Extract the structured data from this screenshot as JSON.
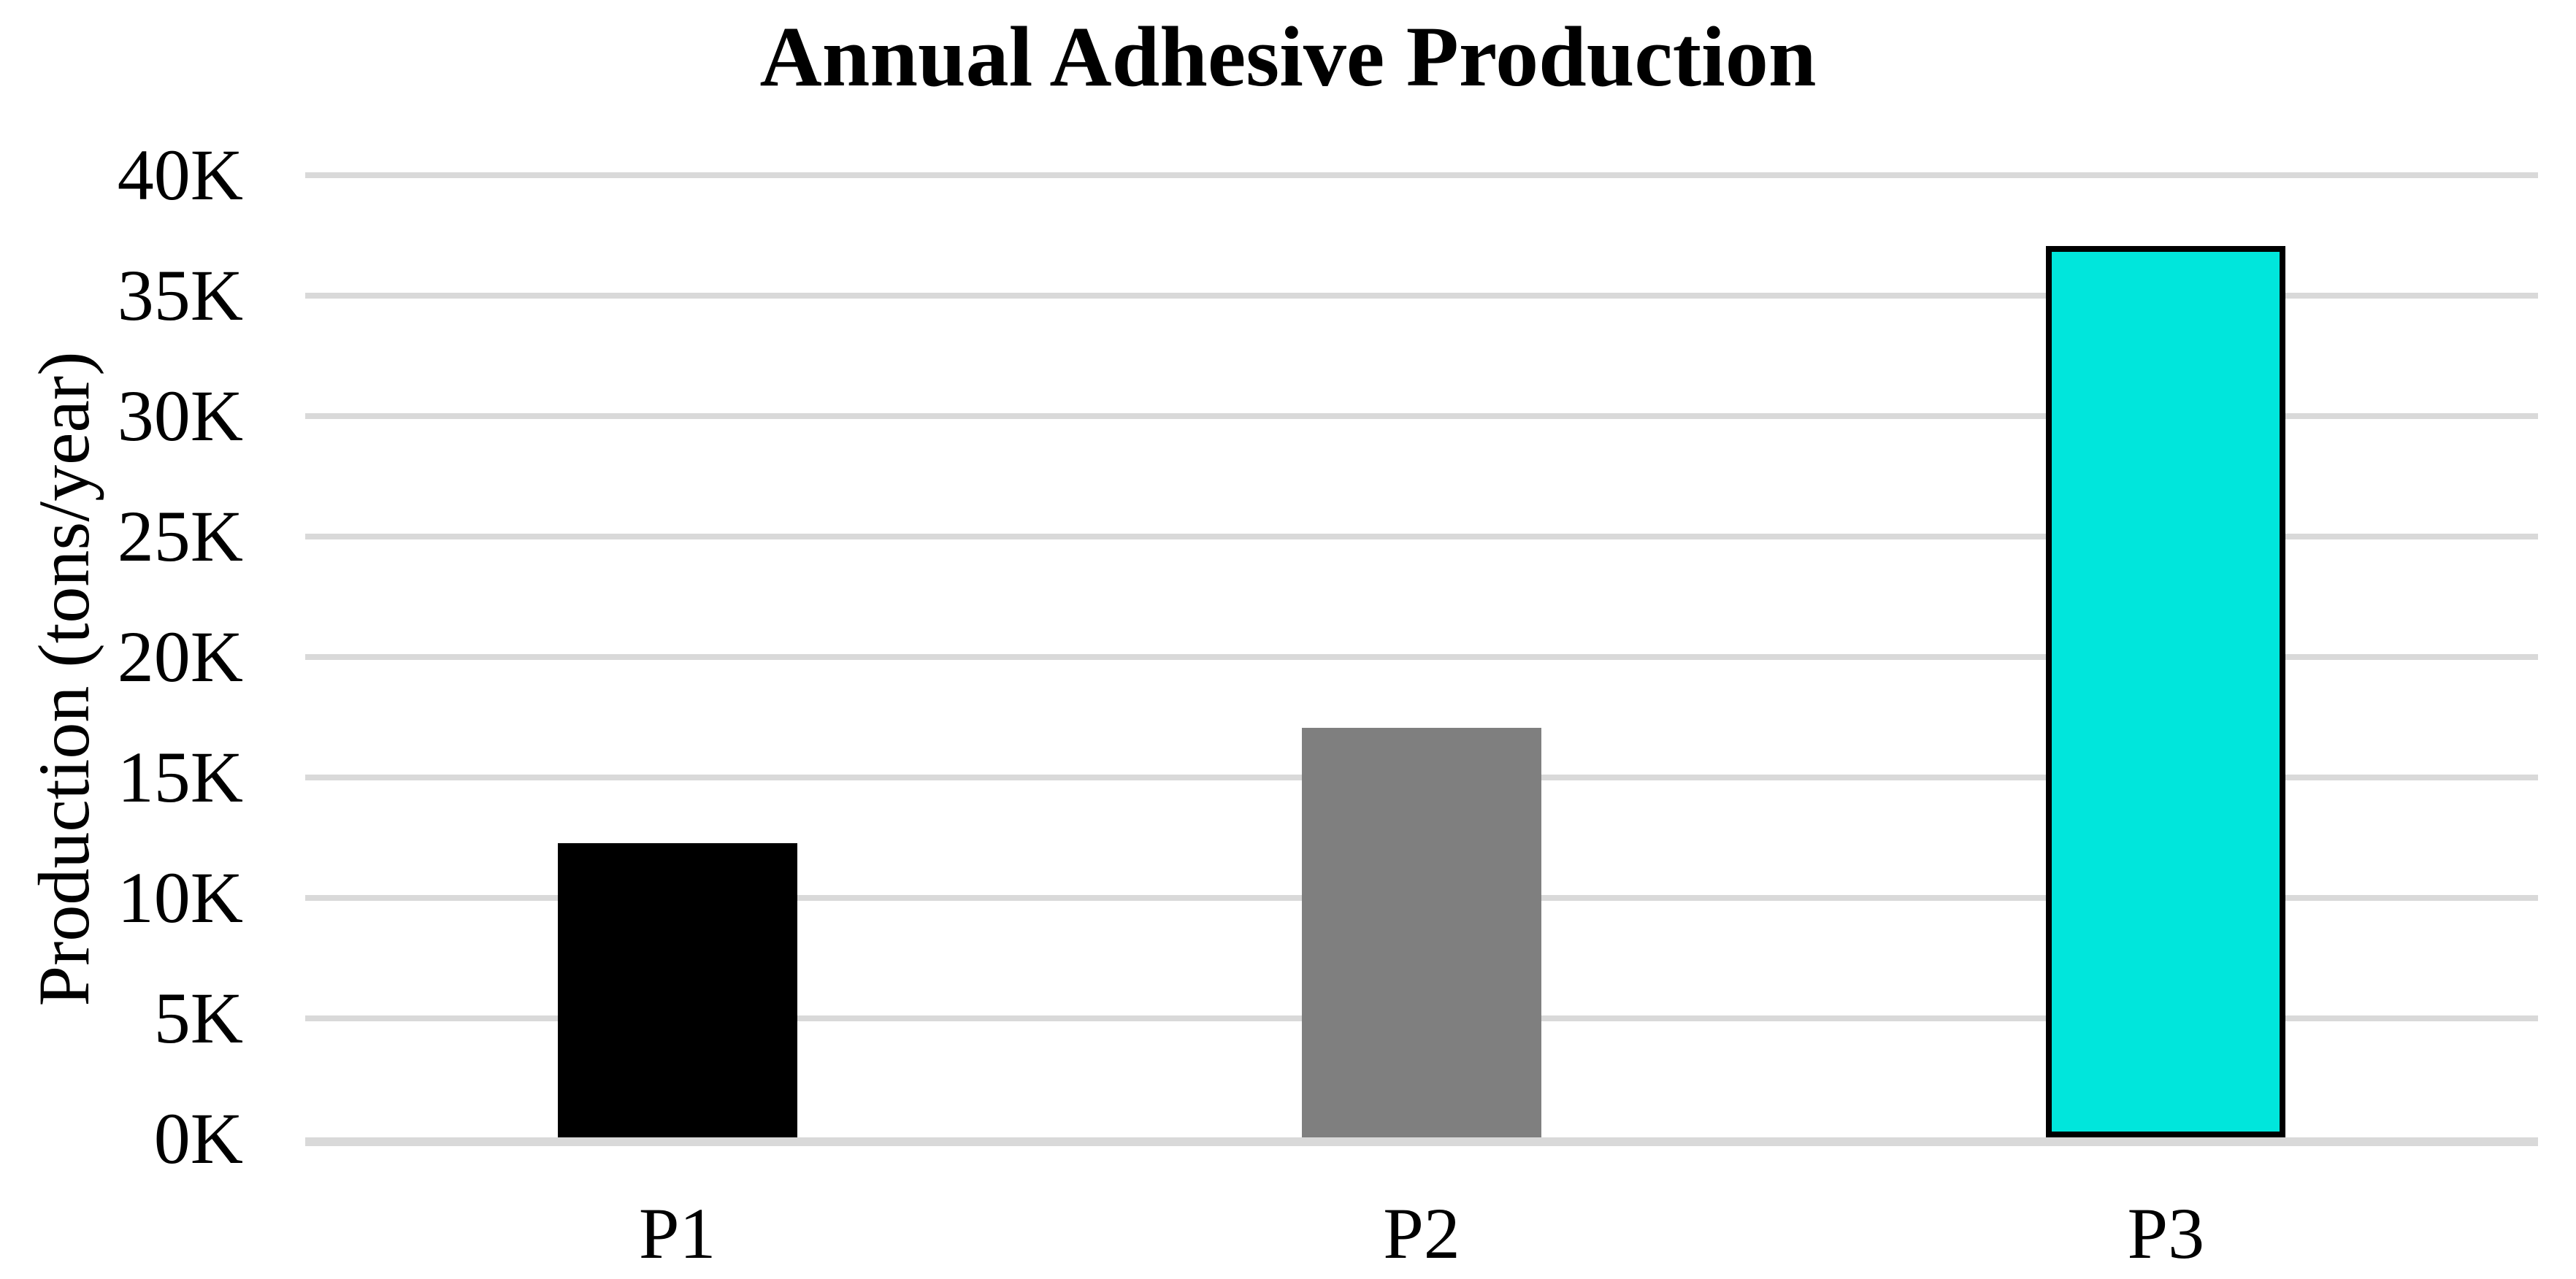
{
  "chart": {
    "title": "Annual Adhesive Production",
    "y_axis_title": "Production (tons/year)"
  },
  "chart_data": {
    "type": "bar",
    "title": "Annual Adhesive Production",
    "xlabel": "",
    "ylabel": "Production (tons/year)",
    "categories": [
      "P1",
      "P2",
      "P3"
    ],
    "values": [
      12200,
      17000,
      37000
    ],
    "ylim": [
      0,
      40000
    ],
    "ytick_step": 5000,
    "ytick_labels": [
      "0K",
      "5K",
      "10K",
      "15K",
      "20K",
      "25K",
      "30K",
      "35K",
      "40K"
    ],
    "grid": true,
    "legend": false,
    "bar_colors": [
      "#000000",
      "#7F7F7F",
      "#00E6DC"
    ],
    "bar_border_colors": [
      null,
      null,
      "#000000"
    ]
  },
  "colors": {
    "background": "#FFFFFF",
    "gridline": "#D9D9D9",
    "axis_line": "#D9D9D9",
    "text": "#000000"
  }
}
